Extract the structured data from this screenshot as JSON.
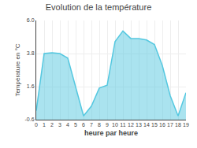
{
  "chart_data": {
    "type": "area",
    "title": "Evolution de la température",
    "xlabel": "heure par heure",
    "ylabel": "Température en °C",
    "x": [
      0,
      1,
      2,
      3,
      4,
      5,
      6,
      7,
      8,
      9,
      10,
      11,
      12,
      13,
      14,
      15,
      16,
      17,
      18,
      19
    ],
    "values": [
      0.0,
      3.8,
      3.85,
      3.8,
      3.5,
      1.5,
      -0.35,
      0.3,
      1.5,
      1.7,
      4.6,
      5.3,
      4.8,
      4.8,
      4.7,
      4.4,
      3.0,
      1.0,
      -0.35,
      1.2
    ],
    "color": "#55c8e0",
    "xlim": [
      0,
      19
    ],
    "xticks": [
      0,
      1,
      2,
      3,
      4,
      5,
      6,
      7,
      8,
      9,
      10,
      11,
      12,
      13,
      14,
      15,
      16,
      17,
      18,
      19
    ],
    "ylim": [
      -0.6,
      6.0
    ],
    "yticks": [
      -0.6,
      1.6,
      3.8,
      {
        "value": 6.0,
        "label": "6.0"
      }
    ],
    "grid": true
  }
}
